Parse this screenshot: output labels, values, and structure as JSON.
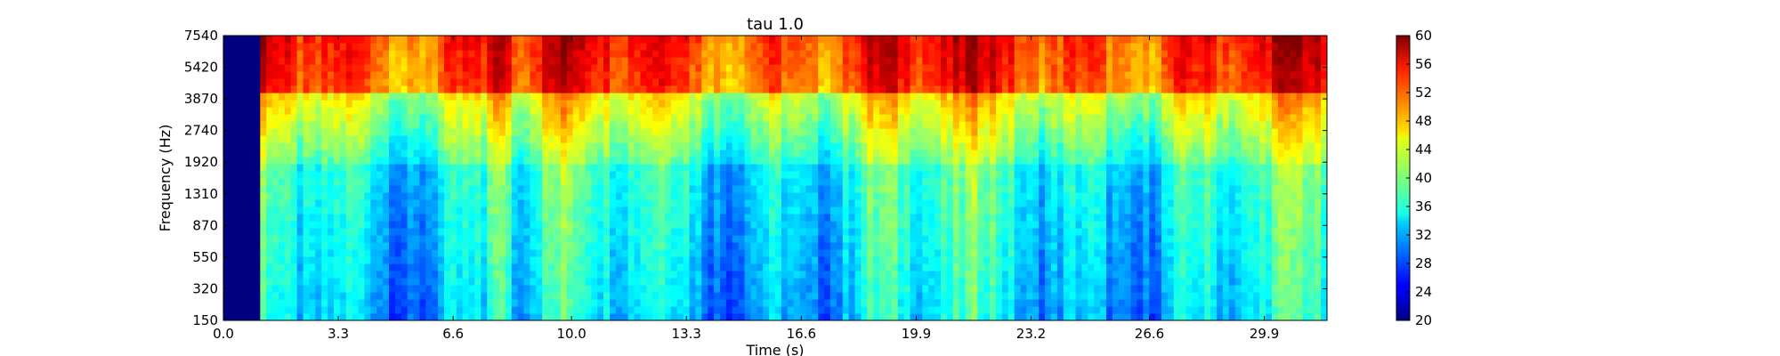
{
  "chart_data": {
    "type": "heatmap",
    "title": "tau 1.0",
    "xlabel": "Time (s)",
    "ylabel": "Frequency (Hz)",
    "x_ticks": [
      "0.0",
      "3.3",
      "6.6",
      "10.0",
      "13.3",
      "16.6",
      "19.9",
      "23.2",
      "26.6",
      "29.9"
    ],
    "x_tick_values": [
      0.0,
      3.3,
      6.6,
      10.0,
      13.3,
      16.6,
      19.9,
      23.2,
      26.6,
      29.9
    ],
    "xlim": [
      0,
      31.7
    ],
    "y_ticks": [
      "150",
      "320",
      "550",
      "870",
      "1310",
      "1920",
      "2740",
      "3870",
      "5420",
      "7540"
    ],
    "colorbar": {
      "range": [
        20,
        60
      ],
      "ticks": [
        "20",
        "24",
        "28",
        "32",
        "36",
        "40",
        "44",
        "48",
        "52",
        "56",
        "60"
      ],
      "colormap": "jet"
    },
    "grid": false,
    "data_description_values": {
      "silence_until_s": 1.0,
      "high_band_level": 52,
      "mid_band_level": 38,
      "low_band_level": 33
    }
  }
}
